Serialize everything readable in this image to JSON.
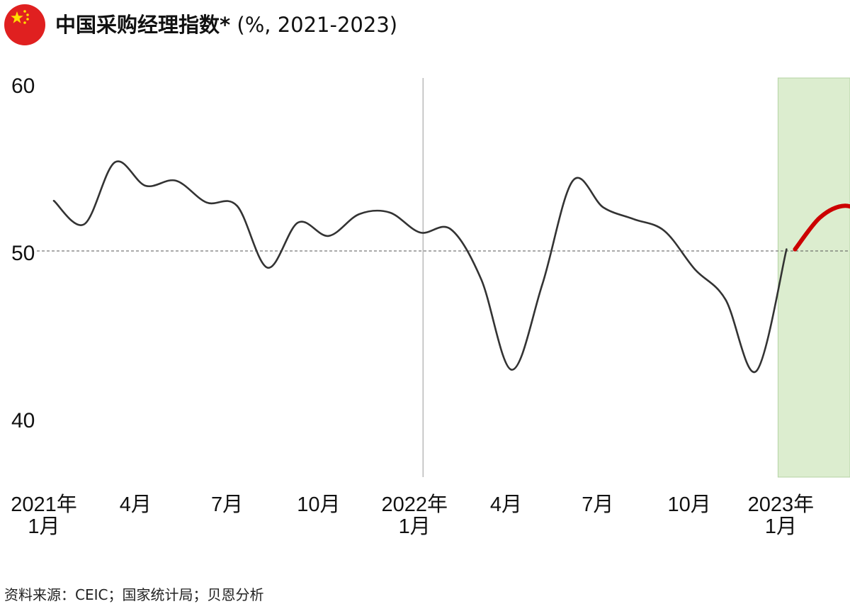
{
  "header": {
    "title": "中国采购经理指数*",
    "unit": " (%, 2021-2023)",
    "flag_icon": "china-flag-icon"
  },
  "source": "资料来源：CEIC；国家统计局；贝恩分析",
  "colors": {
    "line": "#333333",
    "highlight_line": "#cc0000",
    "highlight_band": "#dcedcf",
    "reference_line": "#555555",
    "divider": "#999999",
    "flag_red": "#e02020",
    "flag_star": "#ffde00"
  },
  "chart_data": {
    "type": "line",
    "title": "中国采购经理指数*",
    "subtitle": "(%, 2021-2023)",
    "xlabel": "",
    "ylabel": "",
    "ylim": [
      37.3,
      60
    ],
    "y_ticks": [
      40,
      50,
      60
    ],
    "x_ticks": [
      {
        "line1": "2021年",
        "line2": "1月",
        "month_index": 0
      },
      {
        "line1": "4月",
        "line2": "",
        "month_index": 3
      },
      {
        "line1": "7月",
        "line2": "",
        "month_index": 6
      },
      {
        "line1": "10月",
        "line2": "",
        "month_index": 9
      },
      {
        "line1": "2022年",
        "line2": "1月",
        "month_index": 12
      },
      {
        "line1": "4月",
        "line2": "",
        "month_index": 15
      },
      {
        "line1": "7月",
        "line2": "",
        "month_index": 18
      },
      {
        "line1": "10月",
        "line2": "",
        "month_index": 21
      },
      {
        "line1": "2023年",
        "line2": "1月",
        "month_index": 24
      }
    ],
    "reference_line": 50,
    "year_divider_month_index": 12,
    "highlight_start_month_index": 24,
    "grid": false,
    "legend": "none",
    "series": [
      {
        "values": [
          53.0,
          51.6,
          55.3,
          53.9,
          54.2,
          52.9,
          52.7,
          49.0,
          51.7,
          50.9,
          52.2,
          52.3,
          51.1,
          51.3,
          48.3,
          42.9,
          48.0,
          54.2,
          52.6,
          51.9,
          51.2,
          48.9,
          47.1,
          42.8,
          50.1
        ]
      },
      {
        "values": [
          50.1,
          52.0,
          52.7,
          52.1
        ]
      }
    ]
  }
}
